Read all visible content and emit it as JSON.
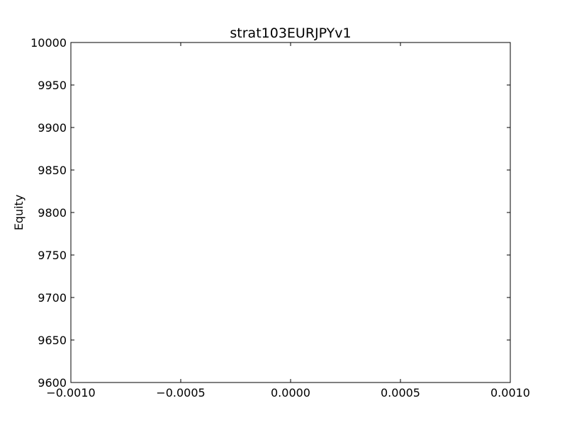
{
  "chart_data": {
    "type": "line",
    "title": "strat103EURJPYv1",
    "xlabel": "",
    "ylabel": "Equity",
    "xlim": [
      -0.001,
      0.001
    ],
    "ylim": [
      9600,
      10000
    ],
    "grid": false,
    "series": [],
    "x_ticks": [
      -0.001,
      -0.0005,
      0.0,
      0.0005,
      0.001
    ],
    "x_tick_labels": [
      "−0.0010",
      "−0.0005",
      "0.0000",
      "0.0005",
      "0.0010"
    ],
    "y_ticks": [
      9600,
      9650,
      9700,
      9750,
      9800,
      9850,
      9900,
      9950,
      10000
    ],
    "y_tick_labels": [
      "9600",
      "9650",
      "9700",
      "9750",
      "9800",
      "9850",
      "9900",
      "9950",
      "10000"
    ],
    "colors": {
      "axes": "#000000",
      "background": "#ffffff"
    }
  }
}
